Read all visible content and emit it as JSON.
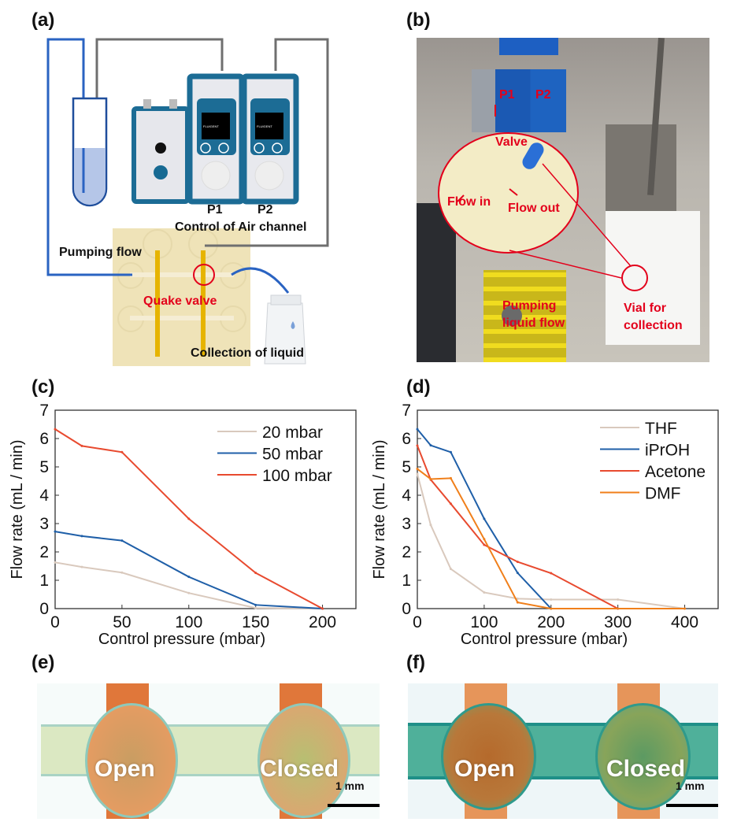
{
  "panels": {
    "a": {
      "label": "(a)",
      "p1": "P1",
      "p2": "P2",
      "control": "Control of Air channel",
      "pumping": "Pumping flow",
      "quake": "Quake valve",
      "collection": "Collection of liquid",
      "brand": "FLUIGENT"
    },
    "b": {
      "label": "(b)",
      "p1": "P1",
      "p2": "P2",
      "valve": "Valve",
      "flow_in": "Flow in",
      "flow_out": "Flow out",
      "pumping1": "Pumping",
      "pumping2": "liquid flow",
      "vial1": "Vial for",
      "vial2": "collection"
    },
    "c": {
      "label": "(c)"
    },
    "d": {
      "label": "(d)"
    },
    "e": {
      "label": "(e)",
      "open": "Open",
      "closed": "Closed",
      "scale": "1 mm"
    },
    "f": {
      "label": "(f)",
      "open": "Open",
      "closed": "Closed",
      "scale": "1 mm"
    }
  },
  "colors": {
    "light": "#d9c9bd",
    "blue": "#1f5fa8",
    "red": "#e84a2f",
    "orange": "#f07f1a",
    "annotation_red": "#e3001b"
  },
  "chart_data": [
    {
      "type": "line",
      "xlabel": "Control pressure (mbar)",
      "ylabel": "Flow rate (mL / min)",
      "xlim": [
        0,
        225
      ],
      "ylim": [
        0,
        7
      ],
      "xticks": [
        0,
        50,
        100,
        150,
        200
      ],
      "yticks": [
        0,
        1,
        2,
        3,
        4,
        5,
        6,
        7
      ],
      "legend": "top-right",
      "grid": false,
      "series": [
        {
          "name": "20 mbar",
          "color": "#d9c9bd",
          "x": [
            0,
            20,
            50,
            100,
            150,
            200
          ],
          "y": [
            1.63,
            1.47,
            1.27,
            0.55,
            0.02,
            0
          ]
        },
        {
          "name": "50 mbar",
          "color": "#1f5fa8",
          "x": [
            0,
            20,
            50,
            100,
            150,
            200
          ],
          "y": [
            2.72,
            2.56,
            2.4,
            1.12,
            0.13,
            0
          ]
        },
        {
          "name": "100 mbar",
          "color": "#e84a2f",
          "x": [
            0,
            20,
            50,
            100,
            150,
            200
          ],
          "y": [
            6.33,
            5.74,
            5.52,
            3.17,
            1.26,
            0
          ]
        }
      ]
    },
    {
      "type": "line",
      "xlabel": "Control pressure (mbar)",
      "ylabel": "Flow rate (mL / min)",
      "xlim": [
        0,
        450
      ],
      "ylim": [
        0,
        7
      ],
      "xticks": [
        0,
        100,
        200,
        300,
        400
      ],
      "yticks": [
        0,
        1,
        2,
        3,
        4,
        5,
        6,
        7
      ],
      "legend": "top-right",
      "grid": false,
      "series": [
        {
          "name": "THF",
          "color": "#d9c9bd",
          "x": [
            0,
            20,
            50,
            100,
            150,
            200,
            300,
            400
          ],
          "y": [
            4.75,
            2.95,
            1.4,
            0.57,
            0.35,
            0.32,
            0.32,
            0
          ]
        },
        {
          "name": "iPrOH",
          "color": "#1f5fa8",
          "x": [
            0,
            20,
            50,
            100,
            150,
            200
          ],
          "y": [
            6.33,
            5.76,
            5.52,
            3.17,
            1.26,
            0
          ]
        },
        {
          "name": "Acetone",
          "color": "#e84a2f",
          "x": [
            0,
            20,
            50,
            100,
            150,
            200,
            300
          ],
          "y": [
            5.75,
            4.55,
            3.7,
            2.25,
            1.65,
            1.25,
            0
          ]
        },
        {
          "name": "DMF",
          "color": "#f07f1a",
          "x": [
            0,
            20,
            50,
            100,
            150,
            200,
            400
          ],
          "y": [
            4.93,
            4.57,
            4.6,
            2.45,
            0.22,
            0,
            0
          ]
        }
      ]
    }
  ]
}
